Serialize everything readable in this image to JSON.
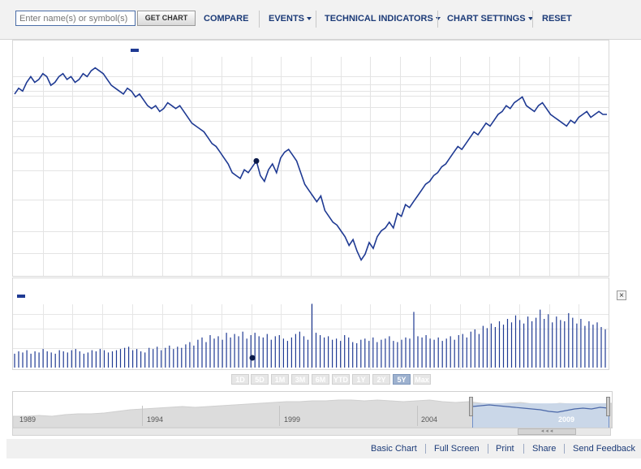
{
  "toolbar": {
    "search_placeholder": "Enter name(s) or symbol(s)",
    "get_chart_label": "GET CHART",
    "compare_label": "COMPARE",
    "events_label": "EVENTS",
    "technical_indicators_label": "TECHNICAL INDICATORS",
    "chart_settings_label": "CHART SETTINGS",
    "reset_label": "RESET"
  },
  "range_buttons": [
    "1D",
    "5D",
    "1M",
    "3M",
    "6M",
    "YTD",
    "1Y",
    "2Y",
    "5Y",
    "Max"
  ],
  "active_range": "5Y",
  "navigator": {
    "years": [
      "1989",
      "1994",
      "1999",
      "2004",
      "2009"
    ],
    "selected_year": "2009"
  },
  "close_label": "×",
  "footer": {
    "links": [
      "Basic Chart",
      "Full Screen",
      "Print",
      "Share",
      "Send Feedback"
    ]
  },
  "colors": {
    "line": "#1f3a93",
    "volume": "#1f3a93",
    "selection": "#c7d6ea",
    "navigator_area": "#dcdcdc"
  },
  "chart_data": [
    {
      "type": "line",
      "title": "",
      "xlabel": "",
      "ylabel": "",
      "y_note": "price series, no axis labels printed",
      "values": [
        62,
        64,
        63,
        66,
        68,
        66,
        67,
        69,
        68,
        65,
        66,
        68,
        69,
        67,
        68,
        66,
        67,
        69,
        68,
        70,
        71,
        70,
        69,
        67,
        65,
        64,
        63,
        62,
        64,
        63,
        61,
        62,
        60,
        58,
        57,
        58,
        56,
        57,
        59,
        58,
        57,
        58,
        56,
        54,
        52,
        51,
        50,
        49,
        47,
        45,
        44,
        42,
        40,
        38,
        35,
        34,
        33,
        36,
        35,
        37,
        39,
        34,
        32,
        36,
        38,
        35,
        40,
        42,
        43,
        41,
        39,
        35,
        31,
        29,
        27,
        25,
        27,
        22,
        20,
        18,
        17,
        15,
        13,
        10,
        12,
        8,
        5,
        7,
        11,
        9,
        13,
        15,
        16,
        18,
        16,
        21,
        20,
        24,
        23,
        25,
        27,
        29,
        31,
        32,
        34,
        35,
        37,
        38,
        40,
        42,
        44,
        43,
        45,
        47,
        49,
        48,
        50,
        52,
        51,
        53,
        55,
        56,
        58,
        57,
        59,
        60,
        61,
        58,
        57,
        56,
        58,
        59,
        57,
        55,
        54,
        53,
        52,
        51,
        53,
        52,
        54,
        55,
        56,
        54,
        55,
        56,
        55,
        55
      ],
      "grid": true
    },
    {
      "type": "bar",
      "title": "",
      "y_note": "volume series, no axis labels printed",
      "values": [
        12,
        14,
        13,
        15,
        12,
        14,
        13,
        16,
        14,
        13,
        12,
        15,
        14,
        13,
        15,
        16,
        14,
        12,
        13,
        15,
        14,
        16,
        15,
        13,
        14,
        15,
        16,
        17,
        18,
        15,
        16,
        14,
        13,
        17,
        16,
        18,
        15,
        17,
        19,
        16,
        18,
        17,
        20,
        22,
        19,
        24,
        26,
        22,
        28,
        25,
        27,
        24,
        30,
        26,
        29,
        27,
        31,
        25,
        28,
        30,
        27,
        26,
        29,
        24,
        27,
        28,
        25,
        23,
        26,
        29,
        31,
        27,
        24,
        55,
        30,
        28,
        26,
        27,
        24,
        25,
        23,
        28,
        26,
        22,
        21,
        24,
        25,
        23,
        26,
        22,
        24,
        25,
        27,
        23,
        22,
        24,
        26,
        25,
        48,
        27,
        26,
        28,
        25,
        24,
        26,
        23,
        25,
        27,
        24,
        28,
        29,
        26,
        31,
        33,
        29,
        36,
        34,
        38,
        35,
        40,
        37,
        42,
        39,
        45,
        41,
        38,
        44,
        40,
        43,
        50,
        42,
        46,
        39,
        44,
        41,
        40,
        47,
        43,
        38,
        42,
        36,
        40,
        37,
        39,
        35,
        33
      ],
      "grid": true
    }
  ]
}
